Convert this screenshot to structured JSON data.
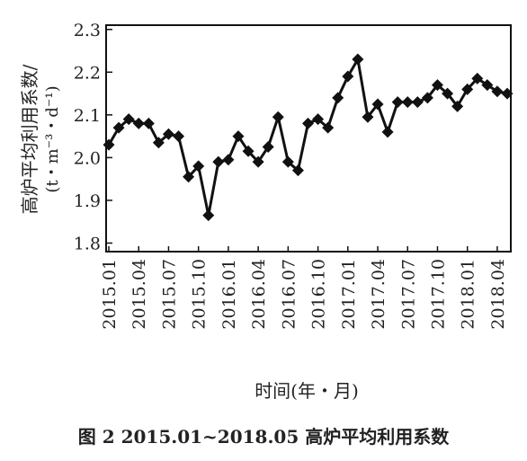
{
  "figure": {
    "caption": "图 2  2015.01~2018.05 高炉平均利用系数"
  },
  "chart_data": {
    "type": "line",
    "xlabel": "时间(年・月)",
    "ylabel_line1": "高炉平均利用系数/",
    "ylabel_line2": "(t・m⁻³・d⁻¹)",
    "ylim": [
      1.78,
      2.31
    ],
    "yticks": [
      1.8,
      1.9,
      2.0,
      2.1,
      2.2,
      2.3
    ],
    "ytick_labels": [
      "1.8",
      "1.9",
      "2.0",
      "2.1",
      "2.2",
      "2.3"
    ],
    "xtick_labels": [
      "2015.01",
      "2015.04",
      "2015.07",
      "2015.10",
      "2016.01",
      "2016.04",
      "2016.07",
      "2016.10",
      "2017.01",
      "2017.04",
      "2017.07",
      "2017.10",
      "2018.01",
      "2018.04"
    ],
    "marker": "diamond",
    "color": "#111111",
    "x": [
      "2015.01",
      "2015.02",
      "2015.03",
      "2015.04",
      "2015.05",
      "2015.06",
      "2015.07",
      "2015.08",
      "2015.09",
      "2015.10",
      "2015.11",
      "2015.12",
      "2016.01",
      "2016.02",
      "2016.03",
      "2016.04",
      "2016.05",
      "2016.06",
      "2016.07",
      "2016.08",
      "2016.09",
      "2016.10",
      "2016.11",
      "2016.12",
      "2017.01",
      "2017.02",
      "2017.03",
      "2017.04",
      "2017.05",
      "2017.06",
      "2017.07",
      "2017.08",
      "2017.09",
      "2017.10",
      "2017.11",
      "2017.12",
      "2018.01",
      "2018.02",
      "2018.03",
      "2018.04",
      "2018.05"
    ],
    "values": [
      2.03,
      2.07,
      2.09,
      2.08,
      2.08,
      2.035,
      2.055,
      2.05,
      1.955,
      1.98,
      1.865,
      1.99,
      1.995,
      2.05,
      2.015,
      1.99,
      2.025,
      2.095,
      1.99,
      1.97,
      2.08,
      2.09,
      2.07,
      2.14,
      2.19,
      2.23,
      2.095,
      2.125,
      2.06,
      2.13,
      2.13,
      2.13,
      2.14,
      2.17,
      2.15,
      2.12,
      2.16,
      2.185,
      2.17,
      2.155,
      2.15
    ]
  }
}
